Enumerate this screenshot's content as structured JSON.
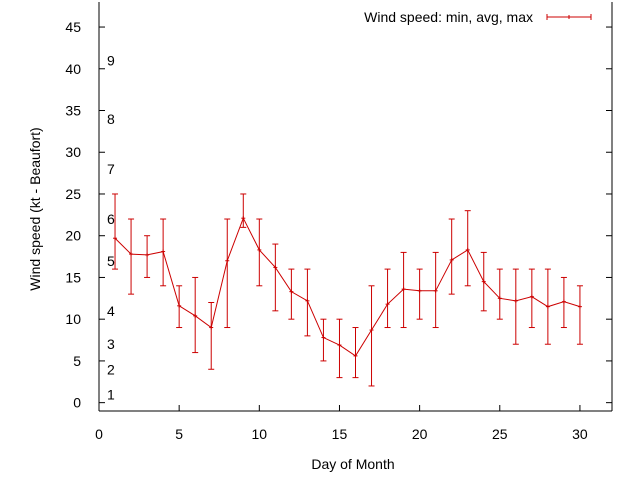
{
  "chart_data": {
    "type": "line",
    "title": "",
    "xlabel": "Day of Month",
    "ylabel": "Wind speed (kt - Beaufort)",
    "xlim": [
      0,
      32
    ],
    "ylim": [
      -1,
      48
    ],
    "x_ticks": [
      0,
      5,
      10,
      15,
      20,
      25,
      30
    ],
    "y_ticks": [
      0,
      5,
      10,
      15,
      20,
      25,
      30,
      35,
      40,
      45
    ],
    "grid": false,
    "legend_position": "top-right",
    "colors": {
      "series": "#cc0000",
      "axes": "#000000"
    },
    "beaufort_labels": [
      {
        "label": "1",
        "y": 1
      },
      {
        "label": "2",
        "y": 4
      },
      {
        "label": "3",
        "y": 7
      },
      {
        "label": "4",
        "y": 11
      },
      {
        "label": "5",
        "y": 17
      },
      {
        "label": "6",
        "y": 22
      },
      {
        "label": "7",
        "y": 28
      },
      {
        "label": "8",
        "y": 34
      },
      {
        "label": "9",
        "y": 41
      }
    ],
    "series": [
      {
        "name": "Wind speed: min, avg, max",
        "x": [
          1,
          2,
          3,
          4,
          5,
          6,
          7,
          8,
          9,
          10,
          11,
          12,
          13,
          14,
          15,
          16,
          17,
          18,
          19,
          20,
          21,
          22,
          23,
          24,
          25,
          26,
          27,
          28,
          29,
          30
        ],
        "avg": [
          19.7,
          17.8,
          17.7,
          18.1,
          11.6,
          10.4,
          9.0,
          17.0,
          22.1,
          18.3,
          16.2,
          13.3,
          12.2,
          7.8,
          6.9,
          5.6,
          8.7,
          11.8,
          13.6,
          13.4,
          13.4,
          17.1,
          18.3,
          14.5,
          12.5,
          12.2,
          12.7,
          11.5,
          12.1,
          11.5
        ],
        "min": [
          16,
          13,
          15,
          14,
          9,
          6,
          4,
          9,
          21,
          14,
          11,
          10,
          8,
          5,
          3,
          3,
          2,
          9,
          9,
          10,
          9,
          13,
          14,
          11,
          10,
          7,
          9,
          7,
          9,
          7
        ],
        "max": [
          25,
          22,
          20,
          22,
          14,
          15,
          12,
          22,
          25,
          22,
          19,
          16,
          16,
          10,
          10,
          9,
          14,
          16,
          18,
          16,
          18,
          22,
          23,
          18,
          16,
          16,
          16,
          16,
          15,
          14
        ]
      }
    ]
  }
}
